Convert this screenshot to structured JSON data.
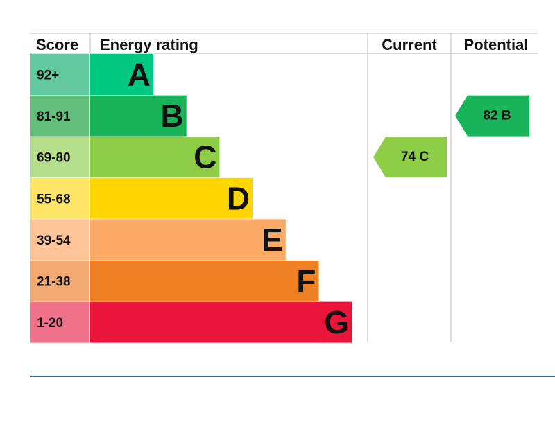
{
  "chart_data": {
    "type": "bar",
    "headers": {
      "score": "Score",
      "rating": "Energy rating",
      "current": "Current",
      "potential": "Potential"
    },
    "bands": [
      {
        "score": "92+",
        "letter": "A",
        "score_color": "#62c8a0",
        "color": "#00c781"
      },
      {
        "score": "81-91",
        "letter": "B",
        "score_color": "#63be7b",
        "color": "#19b459"
      },
      {
        "score": "69-80",
        "letter": "C",
        "score_color": "#b5df8a",
        "color": "#8dce46"
      },
      {
        "score": "55-68",
        "letter": "D",
        "score_color": "#ffe566",
        "color": "#ffd500"
      },
      {
        "score": "39-54",
        "letter": "E",
        "score_color": "#fdc497",
        "color": "#fcaa65"
      },
      {
        "score": "21-38",
        "letter": "F",
        "score_color": "#f3aa72",
        "color": "#ef8023"
      },
      {
        "score": "1-20",
        "letter": "G",
        "score_color": "#f0728a",
        "color": "#e9153b"
      }
    ],
    "current": {
      "value": 74,
      "letter": "C",
      "label": "74  C",
      "color": "#8dce46"
    },
    "potential": {
      "value": 82,
      "letter": "B",
      "label": "82  B",
      "color": "#19b459"
    }
  },
  "colors": {
    "grid": "#bbbbbb",
    "footer_rule": "#2e6da4"
  }
}
